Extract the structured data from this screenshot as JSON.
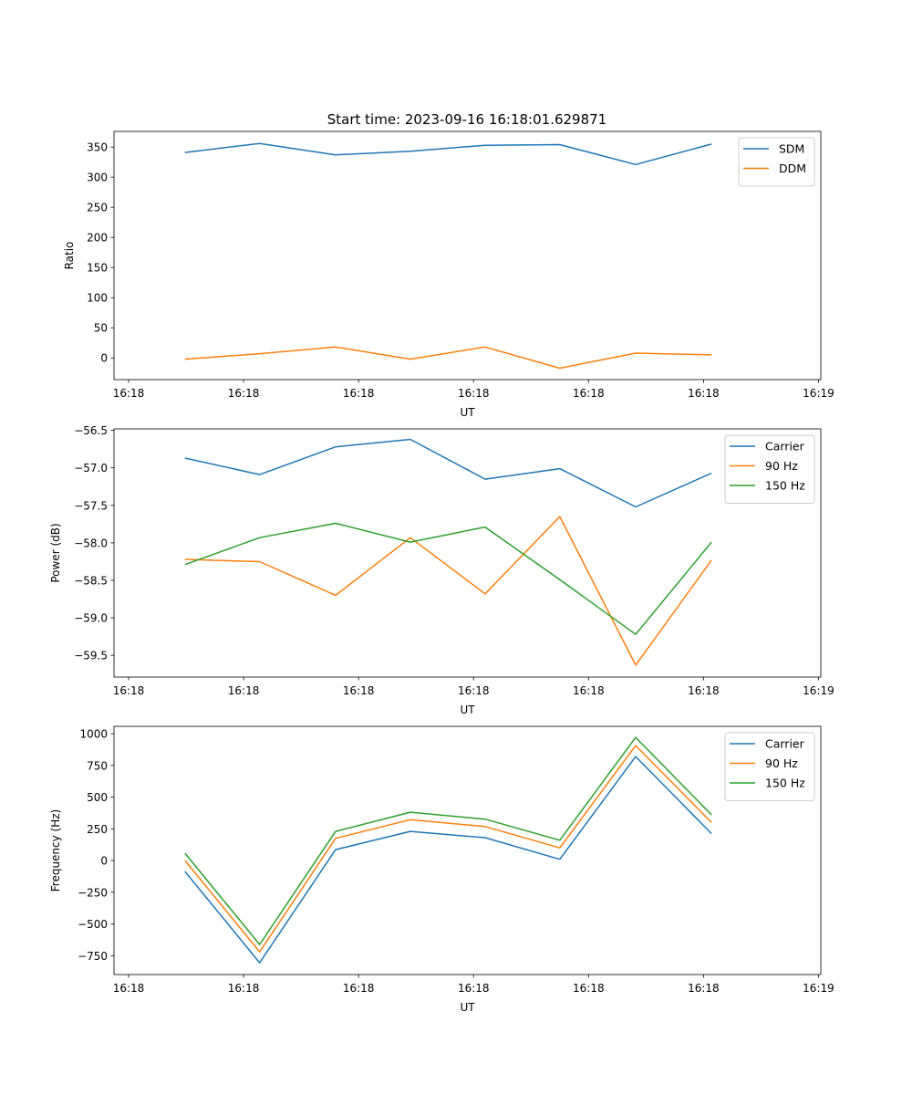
{
  "title": "Start time: 2023-09-16 16:18:01.629871",
  "chart_data": [
    {
      "type": "line",
      "title": "Start time: 2023-09-16 16:18:01.629871",
      "xlabel": "UT",
      "ylabel": "Ratio",
      "x": [
        0.49,
        1.14,
        1.8,
        2.45,
        3.1,
        3.75,
        4.41,
        5.07
      ],
      "xticks": [
        0,
        1,
        2,
        3,
        4,
        5,
        6
      ],
      "xtick_labels": [
        "16:18",
        "16:18",
        "16:18",
        "16:18",
        "16:18",
        "16:18",
        "16:19"
      ],
      "xlim": [
        -0.127,
        6.02
      ],
      "ylim": [
        -36,
        376
      ],
      "yticks": [
        0,
        50,
        100,
        150,
        200,
        250,
        300,
        350
      ],
      "ytick_labels": [
        "0",
        "50",
        "100",
        "150",
        "200",
        "250",
        "300",
        "350"
      ],
      "legend": "top-right",
      "grid": false,
      "series": [
        {
          "name": "SDM",
          "color": "#1f77b4",
          "values": [
            341,
            356,
            337,
            343,
            353,
            354,
            321,
            355
          ]
        },
        {
          "name": "DDM",
          "color": "#ff7f0e",
          "values": [
            -2,
            7,
            18,
            -2,
            18,
            -17,
            8,
            5
          ]
        }
      ]
    },
    {
      "type": "line",
      "xlabel": "UT",
      "ylabel": "Power (dB)",
      "x": [
        0.49,
        1.14,
        1.8,
        2.45,
        3.1,
        3.75,
        4.41,
        5.07
      ],
      "xticks": [
        0,
        1,
        2,
        3,
        4,
        5,
        6
      ],
      "xtick_labels": [
        "16:18",
        "16:18",
        "16:18",
        "16:18",
        "16:18",
        "16:18",
        "16:19"
      ],
      "xlim": [
        -0.127,
        6.02
      ],
      "ylim": [
        -59.79,
        -56.48
      ],
      "yticks": [
        -56.5,
        -57.0,
        -57.5,
        -58.0,
        -58.5,
        -59.0,
        -59.5
      ],
      "ytick_labels": [
        "−56.5",
        "−57.0",
        "−57.5",
        "−58.0",
        "−58.5",
        "−59.0",
        "−59.5"
      ],
      "legend": "top-right",
      "grid": false,
      "series": [
        {
          "name": "Carrier",
          "color": "#1f77b4",
          "values": [
            -56.87,
            -57.09,
            -56.72,
            -56.62,
            -57.15,
            -57.01,
            -57.52,
            -57.07
          ]
        },
        {
          "name": "90 Hz",
          "color": "#ff7f0e",
          "values": [
            -58.22,
            -58.25,
            -58.7,
            -57.93,
            -58.68,
            -57.65,
            -59.63,
            -58.23
          ]
        },
        {
          "name": "150 Hz",
          "color": "#2ca02c",
          "values": [
            -58.29,
            -57.93,
            -57.74,
            -57.99,
            -57.79,
            -58.49,
            -59.22,
            -57.99
          ]
        }
      ]
    },
    {
      "type": "line",
      "xlabel": "UT",
      "ylabel": "Frequency (Hz)",
      "x": [
        0.49,
        1.14,
        1.8,
        2.45,
        3.1,
        3.75,
        4.41,
        5.07
      ],
      "xticks": [
        0,
        1,
        2,
        3,
        4,
        5,
        6
      ],
      "xtick_labels": [
        "16:18",
        "16:18",
        "16:18",
        "16:18",
        "16:18",
        "16:18",
        "16:19"
      ],
      "xlim": [
        -0.127,
        6.02
      ],
      "ylim": [
        -899,
        1058
      ],
      "yticks": [
        1000,
        750,
        500,
        250,
        0,
        -250,
        -500,
        -750
      ],
      "ytick_labels": [
        "1000",
        "750",
        "500",
        "250",
        "0",
        "−250",
        "−500",
        "−750"
      ],
      "legend": "top-right",
      "grid": false,
      "series": [
        {
          "name": "Carrier",
          "color": "#1f77b4",
          "values": [
            -86,
            -806,
            86,
            230,
            180,
            10,
            820,
            212
          ]
        },
        {
          "name": "90 Hz",
          "color": "#ff7f0e",
          "values": [
            0,
            -720,
            175,
            322,
            268,
            100,
            906,
            300
          ]
        },
        {
          "name": "150 Hz",
          "color": "#2ca02c",
          "values": [
            58,
            -662,
            230,
            381,
            326,
            160,
            971,
            360
          ]
        }
      ]
    }
  ]
}
